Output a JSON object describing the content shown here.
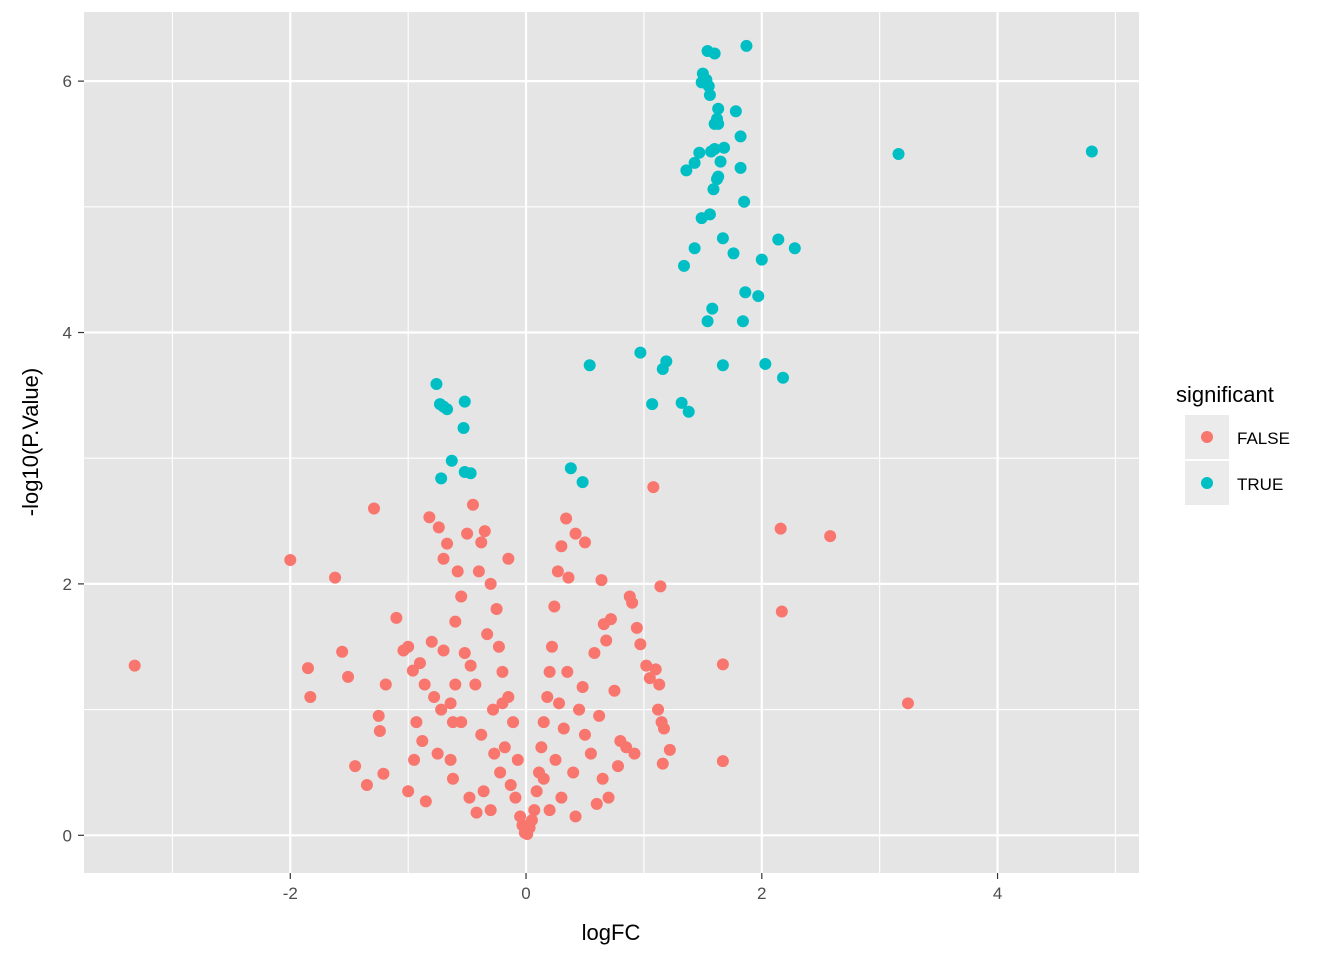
{
  "chart_data": {
    "type": "scatter",
    "title": "",
    "xlabel": "logFC",
    "ylabel": "-log10(P.Value)",
    "xlim": [
      -3.75,
      5.2
    ],
    "ylim": [
      -0.3,
      6.55
    ],
    "x_ticks": [
      -2,
      0,
      2,
      4
    ],
    "y_ticks": [
      0,
      2,
      4,
      6
    ],
    "grid": true,
    "panel_background": "#e5e5e5",
    "grid_color": "#ffffff",
    "legend": {
      "title": "significant",
      "placement": "right",
      "entries": [
        {
          "label": "FALSE",
          "color": "#f8766d"
        },
        {
          "label": "TRUE",
          "color": "#00bfc4"
        }
      ]
    },
    "series": [
      {
        "name": "FALSE",
        "color": "#f8766d",
        "points": [
          [
            -3.32,
            1.35
          ],
          [
            -2.0,
            2.19
          ],
          [
            -1.85,
            1.33
          ],
          [
            -1.83,
            1.1
          ],
          [
            -1.62,
            2.05
          ],
          [
            -1.56,
            1.46
          ],
          [
            -1.51,
            1.26
          ],
          [
            -1.45,
            0.55
          ],
          [
            -1.35,
            0.4
          ],
          [
            -1.29,
            2.6
          ],
          [
            -1.25,
            0.95
          ],
          [
            -1.24,
            0.83
          ],
          [
            -1.21,
            0.49
          ],
          [
            -1.19,
            1.2
          ],
          [
            -1.1,
            1.73
          ],
          [
            -1.04,
            1.47
          ],
          [
            -1.0,
            1.5
          ],
          [
            -0.96,
            1.31
          ],
          [
            -0.93,
            0.9
          ],
          [
            -0.9,
            1.37
          ],
          [
            -0.88,
            0.75
          ],
          [
            -0.85,
            0.27
          ],
          [
            -0.82,
            2.53
          ],
          [
            -0.8,
            1.54
          ],
          [
            -0.78,
            1.1
          ],
          [
            -0.74,
            2.45
          ],
          [
            -0.72,
            1.0
          ],
          [
            -0.7,
            1.47
          ],
          [
            -0.67,
            2.32
          ],
          [
            -0.64,
            0.6
          ],
          [
            -0.62,
            0.9
          ],
          [
            -0.6,
            1.7
          ],
          [
            -0.58,
            2.1
          ],
          [
            -0.55,
            1.9
          ],
          [
            -0.52,
            1.45
          ],
          [
            -0.5,
            2.4
          ],
          [
            -0.48,
            0.3
          ],
          [
            -0.45,
            2.63
          ],
          [
            -0.43,
            1.2
          ],
          [
            -0.4,
            2.1
          ],
          [
            -0.38,
            0.8
          ],
          [
            -0.35,
            2.42
          ],
          [
            -0.33,
            1.6
          ],
          [
            -0.3,
            2.0
          ],
          [
            -0.28,
            1.0
          ],
          [
            -0.25,
            1.8
          ],
          [
            -0.22,
            0.5
          ],
          [
            -0.2,
            1.3
          ],
          [
            -0.18,
            0.7
          ],
          [
            -0.15,
            1.1
          ],
          [
            -0.13,
            0.4
          ],
          [
            -0.11,
            0.9
          ],
          [
            -0.09,
            0.3
          ],
          [
            -0.07,
            0.6
          ],
          [
            -0.05,
            0.15
          ],
          [
            -0.03,
            0.08
          ],
          [
            -0.01,
            0.02
          ],
          [
            -0.62,
            0.45
          ],
          [
            -0.75,
            0.65
          ],
          [
            -0.95,
            0.6
          ],
          [
            -1.0,
            0.35
          ],
          [
            -0.42,
            0.18
          ],
          [
            -0.3,
            0.2
          ],
          [
            -0.55,
            0.9
          ],
          [
            -0.6,
            1.2
          ],
          [
            -0.2,
            1.05
          ],
          [
            -0.27,
            0.65
          ],
          [
            -0.36,
            0.35
          ],
          [
            -0.47,
            1.35
          ],
          [
            -0.64,
            1.05
          ],
          [
            -0.86,
            1.2
          ],
          [
            -0.7,
            2.2
          ],
          [
            -0.15,
            2.2
          ],
          [
            -0.38,
            2.33
          ],
          [
            -0.23,
            1.5
          ],
          [
            0.01,
            0.01
          ],
          [
            0.03,
            0.06
          ],
          [
            0.05,
            0.12
          ],
          [
            0.07,
            0.2
          ],
          [
            0.09,
            0.35
          ],
          [
            0.11,
            0.5
          ],
          [
            0.13,
            0.7
          ],
          [
            0.15,
            0.9
          ],
          [
            0.18,
            1.1
          ],
          [
            0.2,
            1.3
          ],
          [
            0.22,
            1.5
          ],
          [
            0.24,
            1.82
          ],
          [
            0.27,
            2.1
          ],
          [
            0.3,
            2.3
          ],
          [
            0.34,
            2.52
          ],
          [
            0.36,
            2.05
          ],
          [
            0.42,
            2.4
          ],
          [
            0.5,
            2.33
          ],
          [
            0.64,
            2.03
          ],
          [
            0.58,
            1.45
          ],
          [
            0.68,
            1.55
          ],
          [
            0.72,
            1.72
          ],
          [
            0.75,
            1.15
          ],
          [
            0.8,
            0.75
          ],
          [
            0.85,
            0.7
          ],
          [
            0.88,
            1.9
          ],
          [
            0.9,
            1.85
          ],
          [
            0.94,
            1.65
          ],
          [
            0.97,
            1.52
          ],
          [
            1.02,
            1.35
          ],
          [
            1.05,
            1.25
          ],
          [
            1.08,
            2.77
          ],
          [
            1.1,
            1.32
          ],
          [
            1.13,
            1.2
          ],
          [
            1.15,
            0.9
          ],
          [
            1.17,
            0.85
          ],
          [
            1.12,
            1.0
          ],
          [
            1.14,
            1.98
          ],
          [
            1.16,
            0.57
          ],
          [
            1.22,
            0.68
          ],
          [
            0.3,
            0.3
          ],
          [
            0.4,
            0.5
          ],
          [
            0.5,
            0.8
          ],
          [
            0.6,
            0.25
          ],
          [
            0.45,
            1.0
          ],
          [
            0.55,
            0.65
          ],
          [
            0.65,
            0.45
          ],
          [
            0.7,
            0.3
          ],
          [
            0.25,
            0.6
          ],
          [
            0.35,
            1.3
          ],
          [
            0.42,
            0.15
          ],
          [
            0.2,
            0.2
          ],
          [
            0.15,
            0.45
          ],
          [
            0.32,
            0.85
          ],
          [
            0.48,
            1.18
          ],
          [
            0.62,
            0.95
          ],
          [
            0.78,
            0.55
          ],
          [
            0.92,
            0.65
          ],
          [
            0.66,
            1.68
          ],
          [
            0.28,
            1.05
          ],
          [
            1.67,
            1.36
          ],
          [
            1.67,
            0.59
          ],
          [
            2.16,
            2.44
          ],
          [
            2.17,
            1.78
          ],
          [
            2.58,
            2.38
          ],
          [
            3.24,
            1.05
          ]
        ]
      },
      {
        "name": "TRUE",
        "color": "#00bfc4",
        "points": [
          [
            -0.76,
            3.59
          ],
          [
            -0.73,
            3.43
          ],
          [
            -0.7,
            3.41
          ],
          [
            -0.67,
            3.39
          ],
          [
            -0.63,
            2.98
          ],
          [
            -0.72,
            2.84
          ],
          [
            -0.52,
            3.45
          ],
          [
            -0.53,
            3.24
          ],
          [
            -0.52,
            2.89
          ],
          [
            -0.47,
            2.88
          ],
          [
            0.38,
            2.92
          ],
          [
            0.48,
            2.81
          ],
          [
            0.54,
            3.74
          ],
          [
            0.97,
            3.84
          ],
          [
            1.07,
            3.43
          ],
          [
            1.16,
            3.71
          ],
          [
            1.19,
            3.77
          ],
          [
            1.32,
            3.44
          ],
          [
            1.38,
            3.37
          ],
          [
            1.34,
            4.53
          ],
          [
            1.43,
            4.67
          ],
          [
            1.54,
            4.09
          ],
          [
            1.58,
            4.19
          ],
          [
            1.67,
            3.74
          ],
          [
            1.76,
            4.63
          ],
          [
            1.84,
            4.09
          ],
          [
            1.86,
            4.32
          ],
          [
            1.97,
            4.29
          ],
          [
            2.0,
            4.58
          ],
          [
            2.03,
            3.75
          ],
          [
            2.14,
            4.74
          ],
          [
            2.18,
            3.64
          ],
          [
            2.28,
            4.67
          ],
          [
            1.49,
            4.91
          ],
          [
            1.56,
            4.94
          ],
          [
            1.67,
            4.75
          ],
          [
            1.85,
            5.04
          ],
          [
            1.36,
            5.29
          ],
          [
            1.43,
            5.35
          ],
          [
            1.47,
            5.43
          ],
          [
            1.57,
            5.44
          ],
          [
            1.6,
            5.46
          ],
          [
            1.65,
            5.36
          ],
          [
            1.68,
            5.47
          ],
          [
            1.59,
            5.14
          ],
          [
            1.62,
            5.22
          ],
          [
            1.63,
            5.24
          ],
          [
            1.82,
            5.31
          ],
          [
            1.82,
            5.56
          ],
          [
            1.6,
            5.66
          ],
          [
            1.62,
            5.7
          ],
          [
            1.63,
            5.66
          ],
          [
            1.63,
            5.78
          ],
          [
            1.78,
            5.76
          ],
          [
            1.49,
            5.99
          ],
          [
            1.5,
            6.06
          ],
          [
            1.53,
            6.01
          ],
          [
            1.55,
            5.96
          ],
          [
            1.56,
            5.89
          ],
          [
            1.54,
            6.24
          ],
          [
            1.6,
            6.22
          ],
          [
            1.87,
            6.28
          ],
          [
            3.16,
            5.42
          ],
          [
            4.8,
            5.44
          ]
        ]
      }
    ]
  }
}
